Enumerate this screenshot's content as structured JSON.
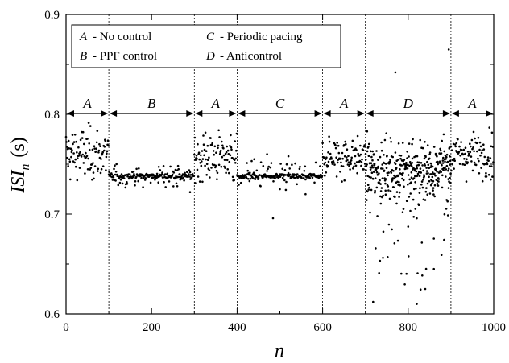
{
  "chart_data": {
    "type": "scatter",
    "xlabel": "n",
    "ylabel_main": "ISI",
    "ylabel_sub": "n",
    "ylabel_unit": "(s)",
    "xlim": [
      0,
      1000
    ],
    "ylim": [
      0.6,
      0.9
    ],
    "x_ticks": [
      "0",
      "200",
      "400",
      "600",
      "800",
      "1000"
    ],
    "y_ticks": [
      "0.6",
      "0.7",
      "0.8",
      "0.9"
    ],
    "phase_boundaries": [
      100,
      300,
      400,
      600,
      700,
      900
    ],
    "phases": [
      {
        "letter": "A",
        "x_start": 0,
        "x_end": 100
      },
      {
        "letter": "B",
        "x_start": 100,
        "x_end": 300
      },
      {
        "letter": "A",
        "x_start": 300,
        "x_end": 400
      },
      {
        "letter": "C",
        "x_start": 400,
        "x_end": 600
      },
      {
        "letter": "A",
        "x_start": 600,
        "x_end": 700
      },
      {
        "letter": "D",
        "x_start": 700,
        "x_end": 900
      },
      {
        "letter": "A",
        "x_start": 900,
        "x_end": 1000
      }
    ],
    "legend": [
      {
        "letter": "A",
        "text": "- No  control"
      },
      {
        "letter": "B",
        "text": "- PPF control"
      },
      {
        "letter": "C",
        "text": "- Periodic pacing"
      },
      {
        "letter": "D",
        "text": "- Anticontrol"
      }
    ],
    "legend_position": "top-left",
    "series": [
      {
        "x_start": 0,
        "x_end": 100,
        "center": 0.76,
        "spread": 0.022,
        "kind": "noise"
      },
      {
        "x_start": 100,
        "x_end": 300,
        "center": 0.738,
        "spread": 0.004,
        "kind": "controlled",
        "outliers": [
          [
            140,
            0.73
          ],
          [
            180,
            0.727
          ],
          [
            220,
            0.744
          ],
          [
            260,
            0.728
          ],
          [
            290,
            0.722
          ]
        ]
      },
      {
        "x_start": 300,
        "x_end": 400,
        "center": 0.758,
        "spread": 0.022,
        "kind": "noise"
      },
      {
        "x_start": 400,
        "x_end": 600,
        "center": 0.738,
        "spread": 0.006,
        "kind": "controlled",
        "outliers": [
          [
            440,
            0.755
          ],
          [
            470,
            0.76
          ],
          [
            484,
            0.696
          ],
          [
            500,
            0.725
          ],
          [
            520,
            0.758
          ],
          [
            540,
            0.73
          ],
          [
            560,
            0.72
          ],
          [
            580,
            0.74
          ]
        ]
      },
      {
        "x_start": 600,
        "x_end": 700,
        "center": 0.757,
        "spread": 0.017,
        "kind": "noise"
      },
      {
        "x_start": 700,
        "x_end": 900,
        "center": 0.745,
        "spread": 0.06,
        "kind": "wide",
        "outliers": [
          [
            718,
            0.612
          ],
          [
            770,
            0.842
          ],
          [
            820,
            0.61
          ],
          [
            840,
            0.625
          ],
          [
            860,
            0.645
          ],
          [
            895,
            0.865
          ]
        ]
      },
      {
        "x_start": 900,
        "x_end": 1000,
        "center": 0.76,
        "spread": 0.018,
        "kind": "noise"
      }
    ]
  }
}
